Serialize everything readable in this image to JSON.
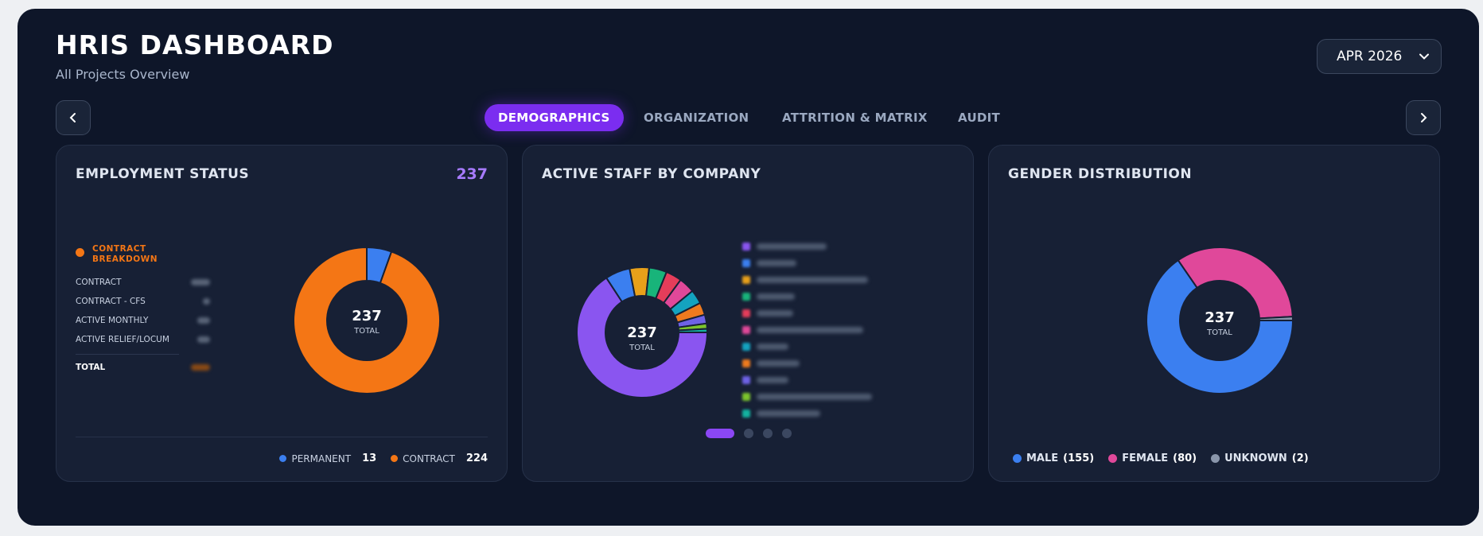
{
  "header": {
    "title": "HRIS DASHBOARD",
    "subtitle": "All Projects Overview",
    "month_select": "APR 2026"
  },
  "tabs": [
    {
      "label": "DEMOGRAPHICS",
      "active": true
    },
    {
      "label": "ORGANIZATION",
      "active": false
    },
    {
      "label": "ATTRITION & MATRIX",
      "active": false
    },
    {
      "label": "AUDIT",
      "active": false
    }
  ],
  "cards": {
    "employment": {
      "title": "EMPLOYMENT STATUS",
      "count": "237",
      "breakdown_title": "CONTRACT BREAKDOWN",
      "breakdown_rows": [
        "CONTRACT",
        "CONTRACT - CFS",
        "ACTIVE MONTHLY",
        "ACTIVE RELIEF/LOCUM"
      ],
      "breakdown_total_label": "TOTAL",
      "center_value": "237",
      "center_label": "TOTAL",
      "legend": [
        {
          "label": "PERMANENT",
          "value": "13",
          "color": "#3b7ff0"
        },
        {
          "label": "CONTRACT",
          "value": "224",
          "color": "#f47615"
        }
      ]
    },
    "company": {
      "title": "ACTIVE STAFF BY COMPANY",
      "center_value": "237",
      "center_label": "TOTAL",
      "segment_colors": [
        "#8a55f0",
        "#3b7ff0",
        "#e8a01a",
        "#18b47a",
        "#e53d5a",
        "#e04899",
        "#14a3bf",
        "#ee7a1e",
        "#6e62e6",
        "#7cc52c",
        "#14b3a0"
      ]
    },
    "gender": {
      "title": "GENDER DISTRIBUTION",
      "center_value": "237",
      "center_label": "TOTAL",
      "legend": [
        {
          "label": "MALE",
          "value": "(155)",
          "color": "#3b7ff0"
        },
        {
          "label": "FEMALE",
          "value": "(80)",
          "color": "#e0489a"
        },
        {
          "label": "UNKNOWN",
          "value": "(2)",
          "color": "#8a96ab"
        }
      ]
    }
  },
  "chart_data": [
    {
      "type": "pie",
      "title": "EMPLOYMENT STATUS",
      "categories": [
        "PERMANENT",
        "CONTRACT"
      ],
      "values": [
        13,
        224
      ]
    },
    {
      "type": "pie",
      "title": "GENDER DISTRIBUTION",
      "categories": [
        "MALE",
        "FEMALE",
        "UNKNOWN"
      ],
      "values": [
        155,
        80,
        2
      ]
    }
  ],
  "pager": {
    "count": 4,
    "active": 0
  }
}
